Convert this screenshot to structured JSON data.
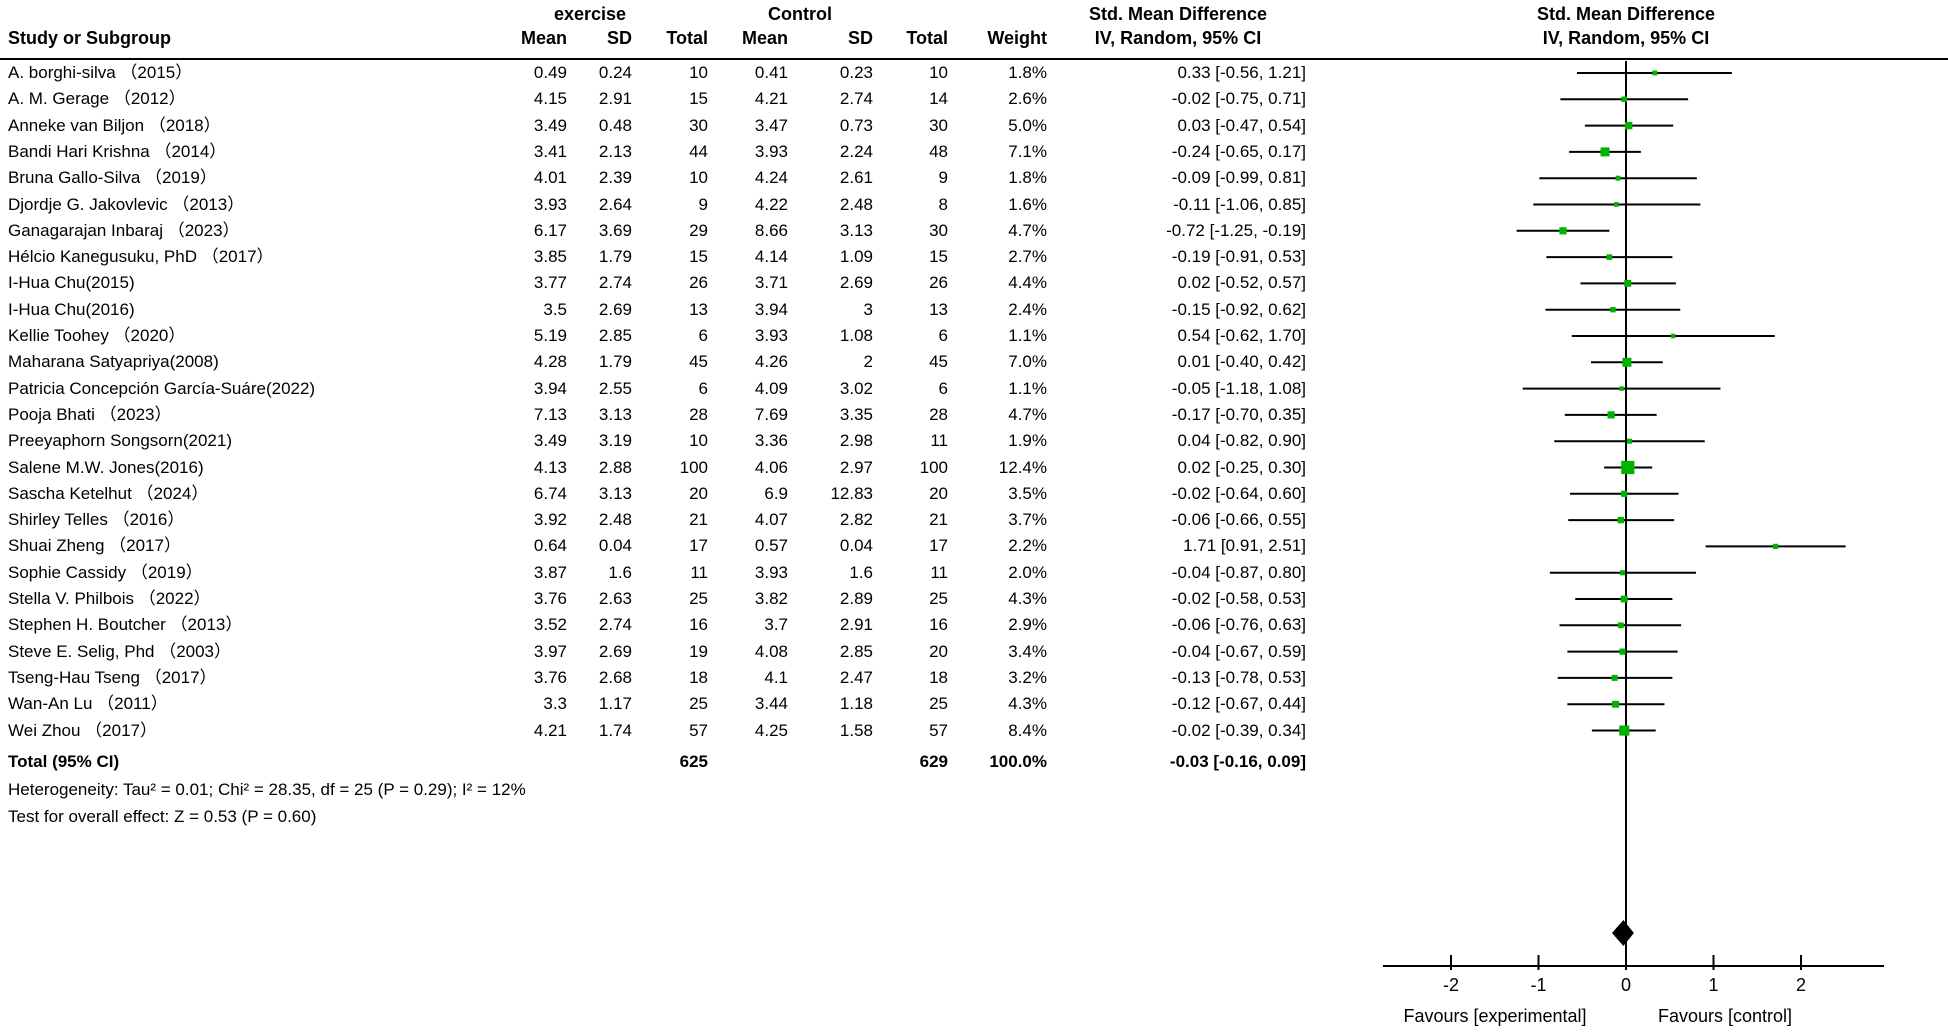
{
  "colors": {
    "marker_green": "#00b300",
    "diamond_black": "#000000",
    "line_black": "#000000",
    "text_black": "#000000",
    "background": "#ffffff"
  },
  "table": {
    "study_col_header": "Study or Subgroup",
    "group1_label": "exercise",
    "group2_label": "Control",
    "effect_col_header": "Std. Mean Difference",
    "effect_col_subheader": "IV, Random, 95% CI",
    "plot_col_header": "Std. Mean Difference",
    "plot_col_subheader": "IV, Random, 95% CI",
    "columns": [
      "Mean",
      "SD",
      "Total",
      "Mean",
      "SD",
      "Total",
      "Weight"
    ],
    "total_row": {
      "label": "Total (95% CI)",
      "total1": "625",
      "total2": "629",
      "weight": "100.0%",
      "ci_text": "-0.03 [-0.16, 0.09]"
    },
    "heterogeneity_line": "Heterogeneity: Tau² = 0.01; Chi² = 28.35, df = 25 (P = 0.29); I² = 12%",
    "overall_effect_line": "Test for overall effect: Z = 0.53 (P = 0.60)"
  },
  "chart_data": {
    "type": "scatter",
    "subtype": "forest-plot",
    "title": "Std. Mean Difference — IV, Random, 95% CI",
    "x_axis": {
      "ticks": [
        -2,
        -1,
        0,
        1,
        2
      ],
      "plotted_range": [
        -2.8,
        2.95
      ],
      "zero_reference_line": 0,
      "label_left": "Favours [experimental]",
      "label_right": "Favours [control]"
    },
    "overall": {
      "est": -0.03,
      "lo": -0.16,
      "hi": 0.09
    },
    "studies": [
      {
        "name": "A. borghi-silva （2015）",
        "mean1": "0.49",
        "sd1": "0.24",
        "n1": "10",
        "mean2": "0.41",
        "sd2": "0.23",
        "n2": "10",
        "weight": "1.8%",
        "weight_pct": 1.8,
        "ci_text": "0.33 [-0.56, 1.21]",
        "est": 0.33,
        "lo": -0.56,
        "hi": 1.21
      },
      {
        "name": "A. M. Gerage （2012）",
        "mean1": "4.15",
        "sd1": "2.91",
        "n1": "15",
        "mean2": "4.21",
        "sd2": "2.74",
        "n2": "14",
        "weight": "2.6%",
        "weight_pct": 2.6,
        "ci_text": "-0.02 [-0.75, 0.71]",
        "est": -0.02,
        "lo": -0.75,
        "hi": 0.71
      },
      {
        "name": "Anneke van Biljon （2018）",
        "mean1": "3.49",
        "sd1": "0.48",
        "n1": "30",
        "mean2": "3.47",
        "sd2": "0.73",
        "n2": "30",
        "weight": "5.0%",
        "weight_pct": 5.0,
        "ci_text": "0.03 [-0.47, 0.54]",
        "est": 0.03,
        "lo": -0.47,
        "hi": 0.54
      },
      {
        "name": "Bandi Hari Krishna （2014）",
        "mean1": "3.41",
        "sd1": "2.13",
        "n1": "44",
        "mean2": "3.93",
        "sd2": "2.24",
        "n2": "48",
        "weight": "7.1%",
        "weight_pct": 7.1,
        "ci_text": "-0.24 [-0.65, 0.17]",
        "est": -0.24,
        "lo": -0.65,
        "hi": 0.17
      },
      {
        "name": "Bruna Gallo-Silva （2019）",
        "mean1": "4.01",
        "sd1": "2.39",
        "n1": "10",
        "mean2": "4.24",
        "sd2": "2.61",
        "n2": "9",
        "weight": "1.8%",
        "weight_pct": 1.8,
        "ci_text": "-0.09 [-0.99, 0.81]",
        "est": -0.09,
        "lo": -0.99,
        "hi": 0.81
      },
      {
        "name": "Djordje G. Jakovlevic （2013）",
        "mean1": "3.93",
        "sd1": "2.64",
        "n1": "9",
        "mean2": "4.22",
        "sd2": "2.48",
        "n2": "8",
        "weight": "1.6%",
        "weight_pct": 1.6,
        "ci_text": "-0.11 [-1.06, 0.85]",
        "est": -0.11,
        "lo": -1.06,
        "hi": 0.85
      },
      {
        "name": "Ganagarajan Inbaraj （2023）",
        "mean1": "6.17",
        "sd1": "3.69",
        "n1": "29",
        "mean2": "8.66",
        "sd2": "3.13",
        "n2": "30",
        "weight": "4.7%",
        "weight_pct": 4.7,
        "ci_text": "-0.72 [-1.25, -0.19]",
        "est": -0.72,
        "lo": -1.25,
        "hi": -0.19
      },
      {
        "name": "Hélcio Kanegusuku, PhD （2017）",
        "mean1": "3.85",
        "sd1": "1.79",
        "n1": "15",
        "mean2": "4.14",
        "sd2": "1.09",
        "n2": "15",
        "weight": "2.7%",
        "weight_pct": 2.7,
        "ci_text": "-0.19 [-0.91, 0.53]",
        "est": -0.19,
        "lo": -0.91,
        "hi": 0.53
      },
      {
        "name": "I-Hua Chu(2015)",
        "mean1": "3.77",
        "sd1": "2.74",
        "n1": "26",
        "mean2": "3.71",
        "sd2": "2.69",
        "n2": "26",
        "weight": "4.4%",
        "weight_pct": 4.4,
        "ci_text": "0.02 [-0.52, 0.57]",
        "est": 0.02,
        "lo": -0.52,
        "hi": 0.57
      },
      {
        "name": "I-Hua Chu(2016)",
        "mean1": "3.5",
        "sd1": "2.69",
        "n1": "13",
        "mean2": "3.94",
        "sd2": "3",
        "n2": "13",
        "weight": "2.4%",
        "weight_pct": 2.4,
        "ci_text": "-0.15 [-0.92, 0.62]",
        "est": -0.15,
        "lo": -0.92,
        "hi": 0.62
      },
      {
        "name": "Kellie Toohey （2020）",
        "mean1": "5.19",
        "sd1": "2.85",
        "n1": "6",
        "mean2": "3.93",
        "sd2": "1.08",
        "n2": "6",
        "weight": "1.1%",
        "weight_pct": 1.1,
        "ci_text": "0.54 [-0.62, 1.70]",
        "est": 0.54,
        "lo": -0.62,
        "hi": 1.7
      },
      {
        "name": "Maharana Satyapriya(2008)",
        "mean1": "4.28",
        "sd1": "1.79",
        "n1": "45",
        "mean2": "4.26",
        "sd2": "2",
        "n2": "45",
        "weight": "7.0%",
        "weight_pct": 7.0,
        "ci_text": "0.01 [-0.40, 0.42]",
        "est": 0.01,
        "lo": -0.4,
        "hi": 0.42
      },
      {
        "name": "Patricia Concepción García-Suáre(2022)",
        "mean1": "3.94",
        "sd1": "2.55",
        "n1": "6",
        "mean2": "4.09",
        "sd2": "3.02",
        "n2": "6",
        "weight": "1.1%",
        "weight_pct": 1.1,
        "ci_text": "-0.05 [-1.18, 1.08]",
        "est": -0.05,
        "lo": -1.18,
        "hi": 1.08
      },
      {
        "name": "Pooja Bhati （2023）",
        "mean1": "7.13",
        "sd1": "3.13",
        "n1": "28",
        "mean2": "7.69",
        "sd2": "3.35",
        "n2": "28",
        "weight": "4.7%",
        "weight_pct": 4.7,
        "ci_text": "-0.17 [-0.70, 0.35]",
        "est": -0.17,
        "lo": -0.7,
        "hi": 0.35
      },
      {
        "name": "Preeyaphorn Songsorn(2021)",
        "mean1": "3.49",
        "sd1": "3.19",
        "n1": "10",
        "mean2": "3.36",
        "sd2": "2.98",
        "n2": "11",
        "weight": "1.9%",
        "weight_pct": 1.9,
        "ci_text": "0.04 [-0.82, 0.90]",
        "est": 0.04,
        "lo": -0.82,
        "hi": 0.9
      },
      {
        "name": "Salene M.W. Jones(2016)",
        "mean1": "4.13",
        "sd1": "2.88",
        "n1": "100",
        "mean2": "4.06",
        "sd2": "2.97",
        "n2": "100",
        "weight": "12.4%",
        "weight_pct": 12.4,
        "ci_text": "0.02 [-0.25, 0.30]",
        "est": 0.02,
        "lo": -0.25,
        "hi": 0.3
      },
      {
        "name": "Sascha Ketelhut （2024）",
        "mean1": "6.74",
        "sd1": "3.13",
        "n1": "20",
        "mean2": "6.9",
        "sd2": "12.83",
        "n2": "20",
        "weight": "3.5%",
        "weight_pct": 3.5,
        "ci_text": "-0.02 [-0.64, 0.60]",
        "est": -0.02,
        "lo": -0.64,
        "hi": 0.6
      },
      {
        "name": "Shirley Telles （2016）",
        "mean1": "3.92",
        "sd1": "2.48",
        "n1": "21",
        "mean2": "4.07",
        "sd2": "2.82",
        "n2": "21",
        "weight": "3.7%",
        "weight_pct": 3.7,
        "ci_text": "-0.06 [-0.66, 0.55]",
        "est": -0.06,
        "lo": -0.66,
        "hi": 0.55
      },
      {
        "name": "Shuai Zheng （2017）",
        "mean1": "0.64",
        "sd1": "0.04",
        "n1": "17",
        "mean2": "0.57",
        "sd2": "0.04",
        "n2": "17",
        "weight": "2.2%",
        "weight_pct": 2.2,
        "ci_text": "1.71 [0.91, 2.51]",
        "est": 1.71,
        "lo": 0.91,
        "hi": 2.51
      },
      {
        "name": "Sophie Cassidy （2019）",
        "mean1": "3.87",
        "sd1": "1.6",
        "n1": "11",
        "mean2": "3.93",
        "sd2": "1.6",
        "n2": "11",
        "weight": "2.0%",
        "weight_pct": 2.0,
        "ci_text": "-0.04 [-0.87, 0.80]",
        "est": -0.04,
        "lo": -0.87,
        "hi": 0.8
      },
      {
        "name": "Stella V. Philbois （2022）",
        "mean1": "3.76",
        "sd1": "2.63",
        "n1": "25",
        "mean2": "3.82",
        "sd2": "2.89",
        "n2": "25",
        "weight": "4.3%",
        "weight_pct": 4.3,
        "ci_text": "-0.02 [-0.58, 0.53]",
        "est": -0.02,
        "lo": -0.58,
        "hi": 0.53
      },
      {
        "name": "Stephen H. Boutcher （2013）",
        "mean1": "3.52",
        "sd1": "2.74",
        "n1": "16",
        "mean2": "3.7",
        "sd2": "2.91",
        "n2": "16",
        "weight": "2.9%",
        "weight_pct": 2.9,
        "ci_text": "-0.06 [-0.76, 0.63]",
        "est": -0.06,
        "lo": -0.76,
        "hi": 0.63
      },
      {
        "name": "Steve E. Selig, Phd （2003）",
        "mean1": "3.97",
        "sd1": "2.69",
        "n1": "19",
        "mean2": "4.08",
        "sd2": "2.85",
        "n2": "20",
        "weight": "3.4%",
        "weight_pct": 3.4,
        "ci_text": "-0.04 [-0.67, 0.59]",
        "est": -0.04,
        "lo": -0.67,
        "hi": 0.59
      },
      {
        "name": "Tseng-Hau Tseng （2017）",
        "mean1": "3.76",
        "sd1": "2.68",
        "n1": "18",
        "mean2": "4.1",
        "sd2": "2.47",
        "n2": "18",
        "weight": "3.2%",
        "weight_pct": 3.2,
        "ci_text": "-0.13 [-0.78, 0.53]",
        "est": -0.13,
        "lo": -0.78,
        "hi": 0.53
      },
      {
        "name": "Wan-An Lu （2011）",
        "mean1": "3.3",
        "sd1": "1.17",
        "n1": "25",
        "mean2": "3.44",
        "sd2": "1.18",
        "n2": "25",
        "weight": "4.3%",
        "weight_pct": 4.3,
        "ci_text": "-0.12 [-0.67, 0.44]",
        "est": -0.12,
        "lo": -0.67,
        "hi": 0.44
      },
      {
        "name": "Wei Zhou （2017）",
        "mean1": "4.21",
        "sd1": "1.74",
        "n1": "57",
        "mean2": "4.25",
        "sd2": "1.58",
        "n2": "57",
        "weight": "8.4%",
        "weight_pct": 8.4,
        "ci_text": "-0.02 [-0.39, 0.34]",
        "est": -0.02,
        "lo": -0.39,
        "hi": 0.34
      }
    ]
  }
}
